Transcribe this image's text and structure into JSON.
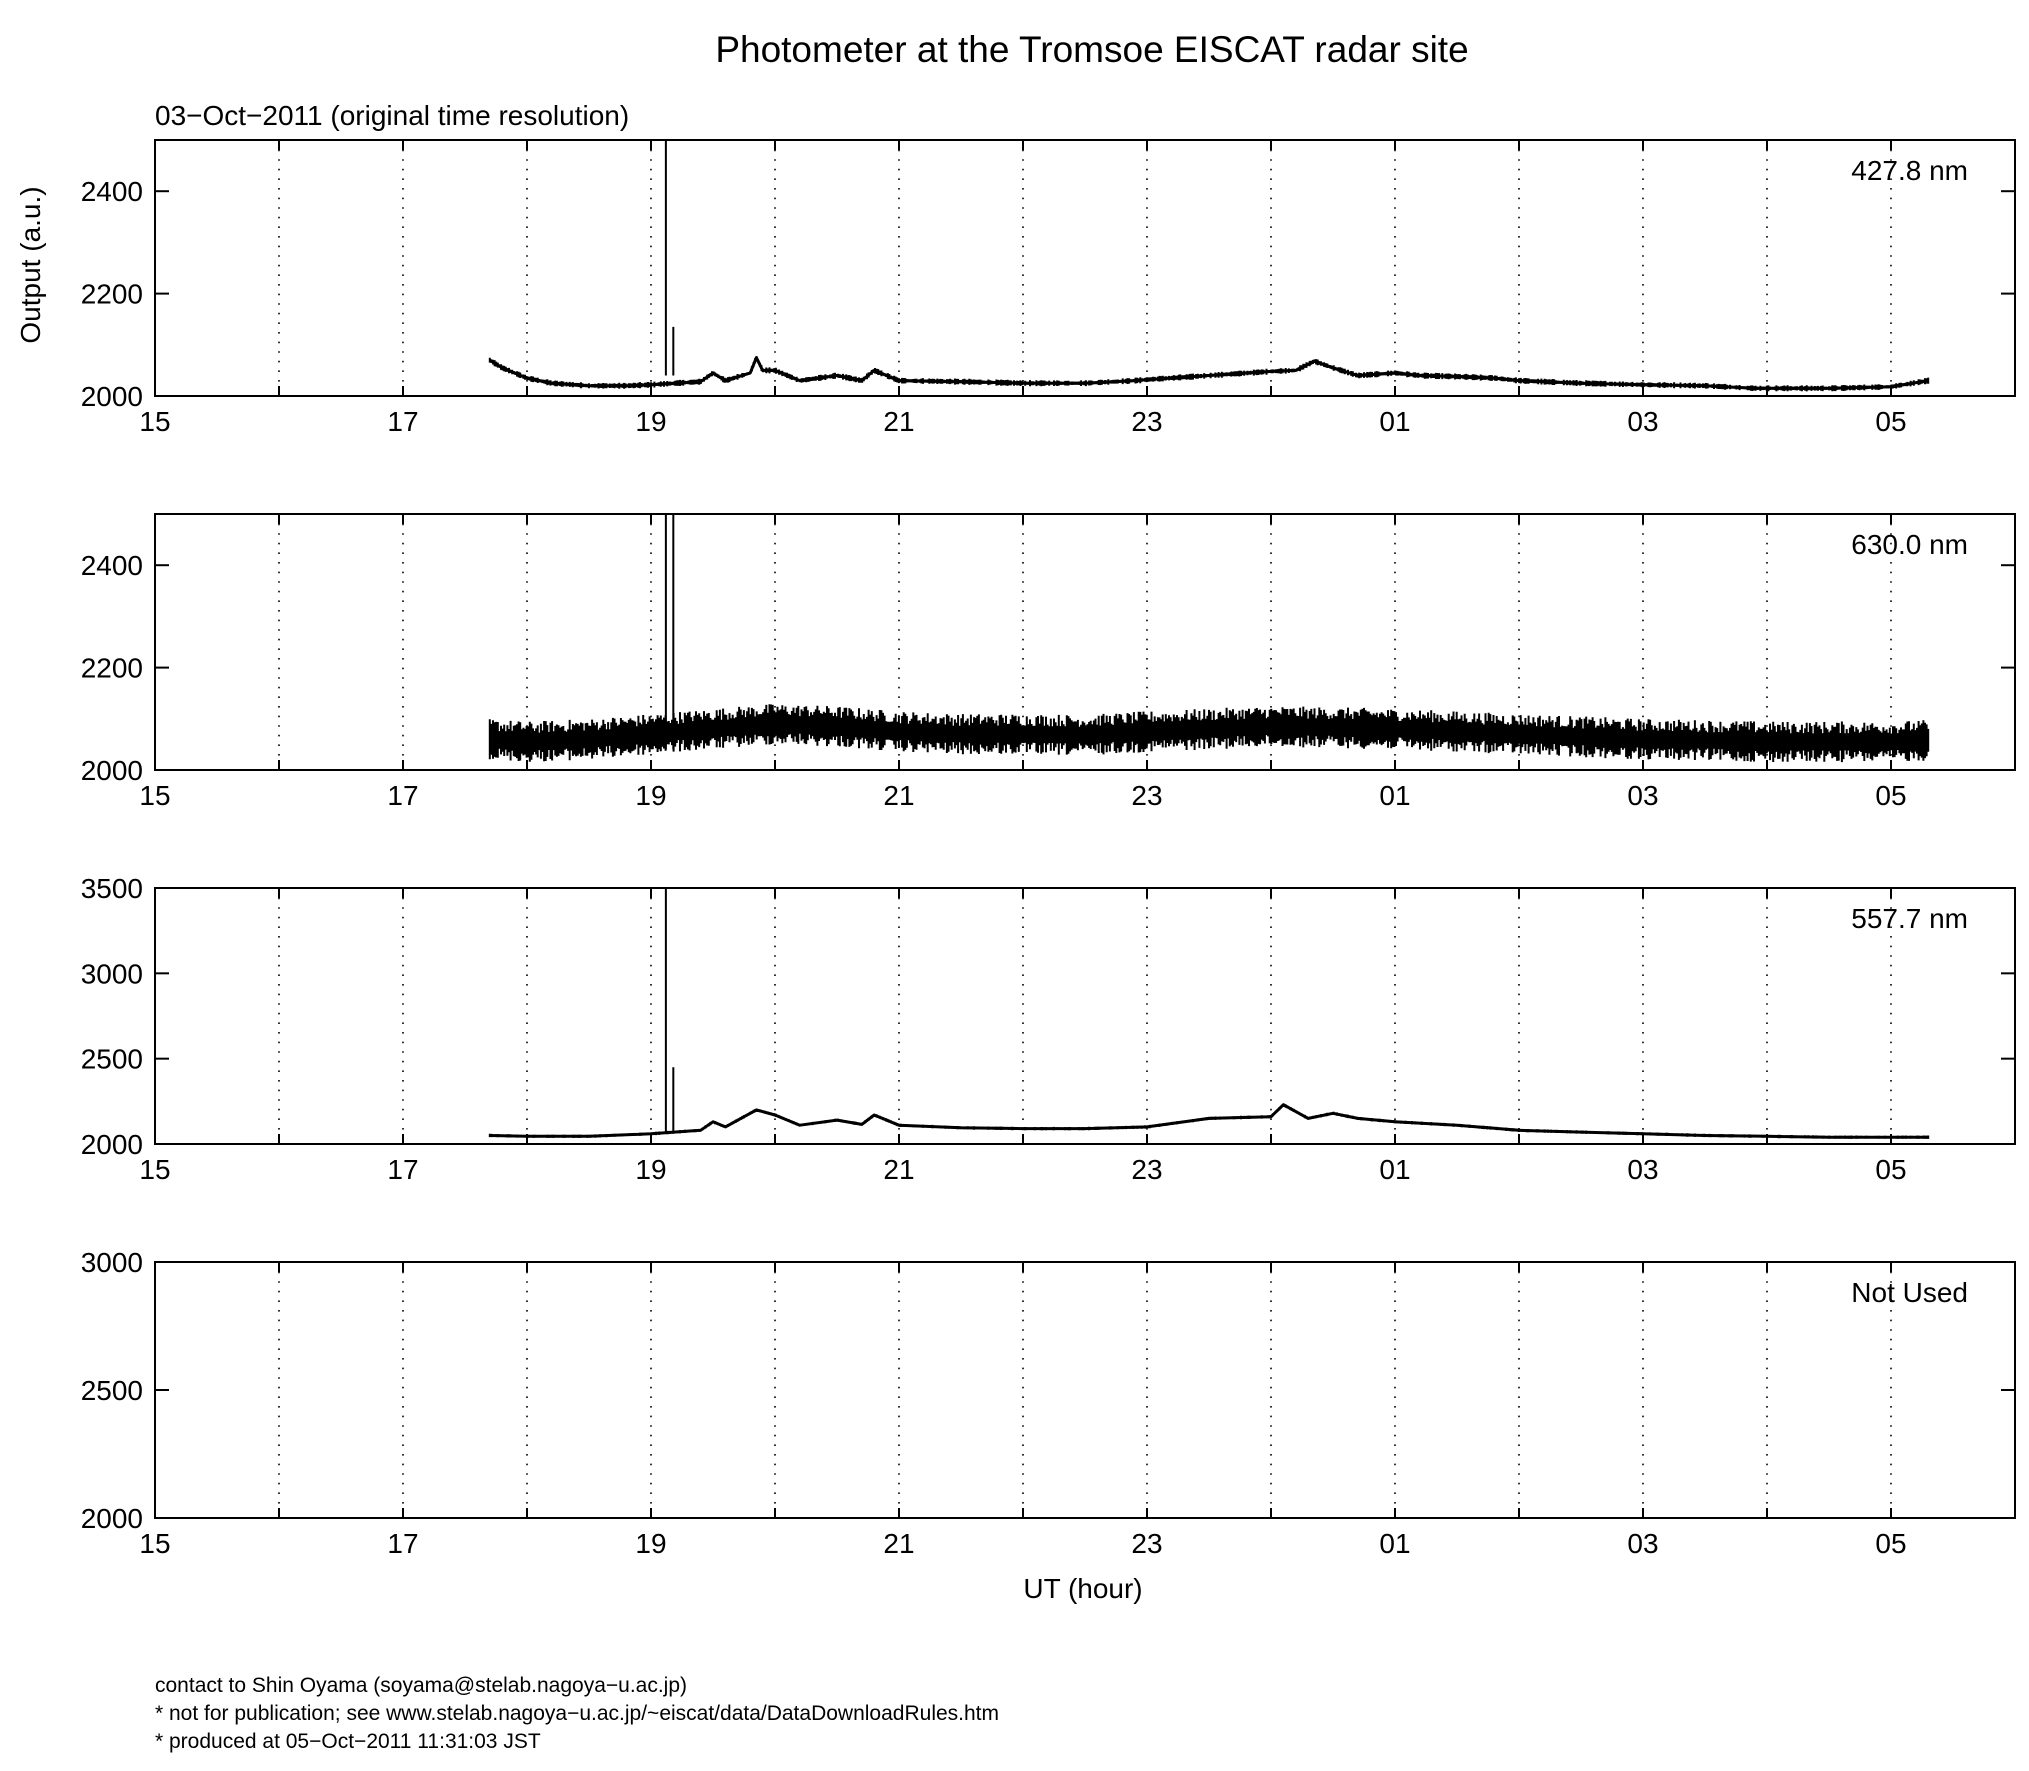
{
  "title": "Photometer at the Tromsoe EISCAT radar site",
  "subtitle": "03−Oct−2011 (original time resolution)",
  "ylabel": "Output (a.u.)",
  "xlabel": "UT (hour)",
  "footer": [
    "contact to Shin Oyama (soyama@stelab.nagoya−u.ac.jp)",
    "* not for publication; see www.stelab.nagoya−u.ac.jp/~eiscat/data/DataDownloadRules.htm",
    "* produced at 05−Oct−2011 11:31:03 JST"
  ],
  "chart_data": [
    {
      "type": "line",
      "label": "427.8 nm",
      "x_unit": "UT hours since 15:00 (03-Oct-2011)",
      "xlim": [
        0,
        15
      ],
      "ylim": [
        2000,
        2500
      ],
      "yticks": [
        2000,
        2200,
        2400
      ],
      "xtick_labels": [
        "15",
        "17",
        "19",
        "21",
        "23",
        "01",
        "03",
        "05"
      ],
      "grid": "dotted vertical every hour",
      "noise_band": 6,
      "spikes": [
        {
          "x": 4.12,
          "y": 2500
        },
        {
          "x": 4.18,
          "y": 2135
        }
      ],
      "x": [
        2.7,
        2.8,
        3.0,
        3.2,
        3.5,
        3.8,
        4.0,
        4.2,
        4.4,
        4.5,
        4.6,
        4.8,
        4.85,
        4.9,
        5.0,
        5.2,
        5.5,
        5.7,
        5.8,
        6.0,
        6.5,
        7.0,
        7.5,
        7.9,
        8.0,
        8.5,
        9.0,
        9.2,
        9.35,
        9.5,
        9.7,
        10.0,
        10.2,
        10.5,
        10.8,
        11.0,
        11.5,
        12.0,
        12.5,
        12.9,
        13.0,
        13.5,
        14.0,
        14.3
      ],
      "y": [
        2070,
        2055,
        2035,
        2025,
        2020,
        2020,
        2022,
        2025,
        2028,
        2045,
        2030,
        2045,
        2075,
        2050,
        2050,
        2030,
        2040,
        2030,
        2050,
        2030,
        2028,
        2025,
        2025,
        2030,
        2032,
        2040,
        2048,
        2050,
        2068,
        2055,
        2040,
        2045,
        2040,
        2038,
        2035,
        2030,
        2025,
        2022,
        2020,
        2015,
        2015,
        2015,
        2018,
        2030
      ]
    },
    {
      "type": "line",
      "label": "630.0 nm",
      "x_unit": "UT hours since 15:00 (03-Oct-2011)",
      "xlim": [
        0,
        15
      ],
      "ylim": [
        2000,
        2500
      ],
      "yticks": [
        2000,
        2200,
        2400
      ],
      "xtick_labels": [
        "15",
        "17",
        "19",
        "21",
        "23",
        "01",
        "03",
        "05"
      ],
      "grid": "dotted vertical every hour",
      "noise_band": 40,
      "spikes": [
        {
          "x": 4.12,
          "y": 2500
        },
        {
          "x": 4.18,
          "y": 2500
        }
      ],
      "x": [
        2.7,
        3.0,
        3.5,
        4.0,
        4.5,
        5.0,
        5.5,
        6.0,
        6.5,
        7.0,
        7.5,
        8.0,
        8.5,
        9.0,
        9.5,
        10.0,
        10.5,
        11.0,
        11.5,
        12.0,
        12.5,
        13.0,
        13.5,
        14.0,
        14.3
      ],
      "y": [
        2060,
        2055,
        2060,
        2070,
        2080,
        2090,
        2085,
        2075,
        2070,
        2070,
        2068,
        2075,
        2080,
        2085,
        2083,
        2080,
        2075,
        2070,
        2065,
        2060,
        2058,
        2055,
        2055,
        2055,
        2058
      ]
    },
    {
      "type": "line",
      "label": "557.7 nm",
      "x_unit": "UT hours since 15:00 (03-Oct-2011)",
      "xlim": [
        0,
        15
      ],
      "ylim": [
        2000,
        3500
      ],
      "yticks": [
        2000,
        2500,
        3000,
        3500
      ],
      "xtick_labels": [
        "15",
        "17",
        "19",
        "21",
        "23",
        "01",
        "03",
        "05"
      ],
      "grid": "dotted vertical every hour",
      "noise_band": 10,
      "spikes": [
        {
          "x": 4.12,
          "y": 3500
        },
        {
          "x": 4.18,
          "y": 2450
        }
      ],
      "x": [
        2.7,
        3.0,
        3.5,
        4.0,
        4.4,
        4.5,
        4.6,
        4.85,
        5.0,
        5.2,
        5.5,
        5.7,
        5.8,
        6.0,
        6.5,
        7.0,
        7.5,
        8.0,
        8.5,
        9.0,
        9.1,
        9.3,
        9.5,
        9.7,
        10.0,
        10.5,
        11.0,
        11.5,
        12.0,
        12.5,
        13.0,
        13.5,
        14.0,
        14.3
      ],
      "y": [
        2050,
        2045,
        2045,
        2060,
        2080,
        2130,
        2100,
        2200,
        2170,
        2110,
        2140,
        2115,
        2170,
        2110,
        2095,
        2090,
        2090,
        2100,
        2150,
        2160,
        2230,
        2150,
        2180,
        2150,
        2130,
        2110,
        2080,
        2070,
        2060,
        2050,
        2045,
        2040,
        2040,
        2040
      ]
    },
    {
      "type": "line",
      "label": "Not Used",
      "x_unit": "UT hours since 15:00 (03-Oct-2011)",
      "xlim": [
        0,
        15
      ],
      "ylim": [
        2000,
        3000
      ],
      "yticks": [
        2000,
        2500,
        3000
      ],
      "xtick_labels": [
        "15",
        "17",
        "19",
        "21",
        "23",
        "01",
        "03",
        "05"
      ],
      "grid": "dotted vertical every hour",
      "x": [],
      "y": []
    }
  ]
}
